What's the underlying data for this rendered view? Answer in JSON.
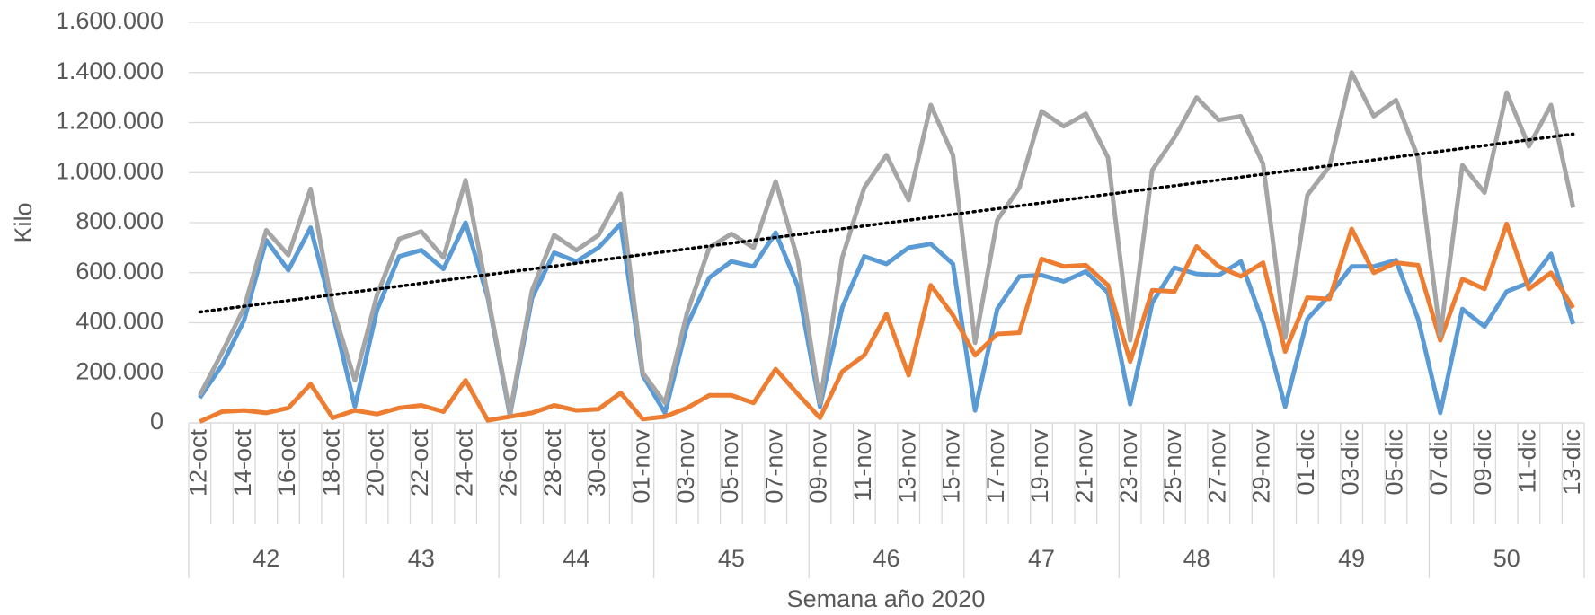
{
  "chart_data": {
    "type": "line",
    "y_label": "Kilo",
    "x_label": "Semana año 2020",
    "categories": [
      "12-oct",
      null,
      "14-oct",
      null,
      "16-oct",
      null,
      "18-oct",
      null,
      "20-oct",
      null,
      "22-oct",
      null,
      "24-oct",
      null,
      "26-oct",
      null,
      "28-oct",
      null,
      "30-oct",
      null,
      "01-nov",
      null,
      "03-nov",
      null,
      "05-nov",
      null,
      "07-nov",
      null,
      "09-nov",
      null,
      "11-nov",
      null,
      "13-nov",
      null,
      "15-nov",
      null,
      "17-nov",
      null,
      "19-nov",
      null,
      "21-nov",
      null,
      "23-nov",
      null,
      "25-nov",
      null,
      "27-nov",
      null,
      "29-nov",
      null,
      "01-dic",
      null,
      "03-dic",
      null,
      "05-dic",
      null,
      "07-dic",
      null,
      "09-dic",
      null,
      "11-dic",
      null,
      "13-dic"
    ],
    "groups": [
      "42",
      "43",
      "44",
      "45",
      "46",
      "47",
      "48",
      "49",
      "50"
    ],
    "series": [
      {
        "color": "#5b9bd5",
        "values": [
          100000,
          230000,
          410000,
          730000,
          610000,
          780000,
          440000,
          65000,
          450000,
          665000,
          690000,
          615000,
          800000,
          500000,
          30000,
          500000,
          680000,
          645000,
          700000,
          795000,
          190000,
          40000,
          390000,
          580000,
          645000,
          625000,
          760000,
          545000,
          65000,
          460000,
          665000,
          635000,
          700000,
          715000,
          635000,
          50000,
          455000,
          585000,
          590000,
          565000,
          605000,
          520000,
          75000,
          480000,
          620000,
          595000,
          590000,
          645000,
          400000,
          65000,
          415000,
          510000,
          625000,
          625000,
          650000,
          415000,
          40000,
          455000,
          385000,
          525000,
          560000,
          675000,
          395000
        ]
      },
      {
        "color": "#ed7d31",
        "values": [
          5000,
          45000,
          50000,
          40000,
          60000,
          155000,
          20000,
          50000,
          35000,
          60000,
          70000,
          45000,
          170000,
          10000,
          25000,
          40000,
          70000,
          50000,
          55000,
          120000,
          15000,
          25000,
          60000,
          110000,
          110000,
          80000,
          215000,
          115000,
          20000,
          205000,
          270000,
          435000,
          190000,
          550000,
          430000,
          270000,
          355000,
          360000,
          655000,
          625000,
          630000,
          550000,
          245000,
          530000,
          525000,
          705000,
          625000,
          585000,
          640000,
          285000,
          500000,
          495000,
          775000,
          600000,
          640000,
          630000,
          330000,
          575000,
          535000,
          795000,
          535000,
          600000,
          460000
        ]
      },
      {
        "color": "#a5a5a5",
        "trendline": true,
        "trendline_color": "#000000",
        "values": [
          110000,
          280000,
          460000,
          770000,
          670000,
          935000,
          460000,
          170000,
          510000,
          735000,
          765000,
          660000,
          970000,
          510000,
          40000,
          530000,
          750000,
          690000,
          750000,
          915000,
          200000,
          80000,
          440000,
          700000,
          755000,
          700000,
          965000,
          650000,
          80000,
          660000,
          940000,
          1070000,
          890000,
          1270000,
          1070000,
          320000,
          810000,
          940000,
          1245000,
          1185000,
          1235000,
          1060000,
          330000,
          1010000,
          1140000,
          1300000,
          1210000,
          1225000,
          1035000,
          340000,
          910000,
          1025000,
          1400000,
          1225000,
          1290000,
          1060000,
          350000,
          1030000,
          920000,
          1320000,
          1105000,
          1270000,
          860000
        ]
      }
    ],
    "ylim": [
      0,
      1600000
    ],
    "yticks": [
      0,
      {
        "value": 200000,
        "label": "200.000"
      },
      {
        "value": 400000,
        "label": "400.000"
      },
      {
        "value": 600000,
        "label": "600.000"
      },
      {
        "value": 800000,
        "label": "800.000"
      },
      {
        "value": 1000000,
        "label": "1.000.000"
      },
      {
        "value": 1200000,
        "label": "1.200.000"
      },
      {
        "value": 1400000,
        "label": "1.400.000"
      },
      {
        "value": 1600000,
        "label": "1.600.000"
      }
    ],
    "grid": true
  }
}
